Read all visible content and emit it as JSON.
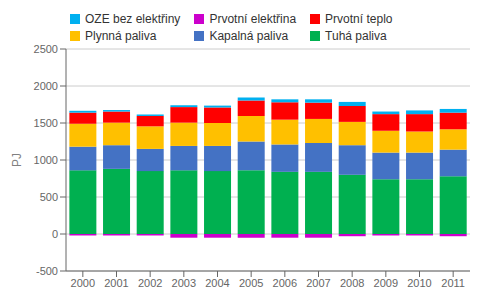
{
  "chart_data": {
    "type": "bar",
    "stacked": true,
    "categories": [
      "2000",
      "2001",
      "2002",
      "2003",
      "2004",
      "2005",
      "2006",
      "2007",
      "2008",
      "2009",
      "2010",
      "2011"
    ],
    "series": [
      {
        "name": "OZE bez elektřiny",
        "color": "#00b0f0",
        "values": [
          25,
          20,
          20,
          25,
          25,
          40,
          40,
          45,
          55,
          35,
          50,
          50
        ]
      },
      {
        "name": "Prvotní elektřina",
        "color": "#cc00cc",
        "values": [
          -20,
          -20,
          -20,
          -50,
          -50,
          -50,
          -50,
          -50,
          -30,
          -20,
          -20,
          -30
        ]
      },
      {
        "name": "Prvotní teplo",
        "color": "#ff0000",
        "values": [
          150,
          150,
          140,
          210,
          210,
          210,
          235,
          220,
          215,
          225,
          235,
          225
        ]
      },
      {
        "name": "Plynná paliva",
        "color": "#ffc000",
        "values": [
          310,
          305,
          305,
          315,
          310,
          345,
          335,
          325,
          315,
          295,
          285,
          275
        ]
      },
      {
        "name": "Kapalná paliva",
        "color": "#4472c4",
        "values": [
          320,
          320,
          300,
          330,
          340,
          390,
          370,
          390,
          400,
          360,
          360,
          360
        ]
      },
      {
        "name": "Tuhá paliva",
        "color": "#00b050",
        "values": [
          860,
          880,
          850,
          860,
          850,
          860,
          840,
          840,
          800,
          740,
          740,
          780
        ]
      }
    ],
    "ylabel": "PJ",
    "ylim": [
      -500,
      2500
    ],
    "yticks": [
      -500,
      0,
      500,
      1000,
      1500,
      2000,
      2500
    ],
    "grid": true,
    "legend": "top"
  }
}
